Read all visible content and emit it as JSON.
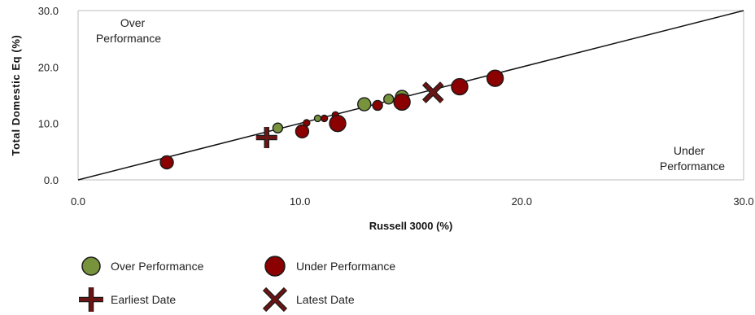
{
  "chart_data": {
    "type": "scatter",
    "xlabel": "Russell 3000  (%)",
    "ylabel": "Total Domestic Eq  (%)",
    "xlim": [
      0,
      30
    ],
    "ylim": [
      0,
      30
    ],
    "x_ticks": [
      "0.0",
      "10.0",
      "20.0",
      "30.0"
    ],
    "y_ticks": [
      "0.0",
      "10.0",
      "20.0",
      "30.0"
    ],
    "x_tick_values": [
      0,
      10,
      20,
      30
    ],
    "y_tick_values": [
      0,
      10,
      20,
      30
    ],
    "grid": false,
    "reference_line": {
      "x": [
        0,
        30
      ],
      "y": [
        0,
        30
      ]
    },
    "region_labels": {
      "over": [
        "Over",
        "Performance"
      ],
      "under": [
        "Under",
        "Performance"
      ]
    },
    "colors": {
      "over": "#77933c",
      "under": "#8b0000",
      "marker": "#6b1414",
      "outline": "#1a1a1a"
    },
    "series": [
      {
        "name": "Over Performance",
        "points": [
          {
            "x": 9.0,
            "y": 9.2,
            "r": 6
          },
          {
            "x": 10.8,
            "y": 10.9,
            "r": 4
          },
          {
            "x": 12.9,
            "y": 13.4,
            "r": 8
          },
          {
            "x": 14.0,
            "y": 14.3,
            "r": 6
          },
          {
            "x": 14.6,
            "y": 14.7,
            "r": 8
          }
        ]
      },
      {
        "name": "Under Performance",
        "points": [
          {
            "x": 4.0,
            "y": 3.1,
            "r": 8
          },
          {
            "x": 10.1,
            "y": 8.6,
            "r": 8
          },
          {
            "x": 10.3,
            "y": 10.1,
            "r": 4
          },
          {
            "x": 11.1,
            "y": 10.9,
            "r": 4
          },
          {
            "x": 11.6,
            "y": 11.5,
            "r": 4
          },
          {
            "x": 11.7,
            "y": 10.0,
            "r": 10
          },
          {
            "x": 13.5,
            "y": 13.2,
            "r": 6
          },
          {
            "x": 14.6,
            "y": 13.8,
            "r": 10
          },
          {
            "x": 17.2,
            "y": 16.5,
            "r": 10
          },
          {
            "x": 18.8,
            "y": 18.0,
            "r": 10
          }
        ]
      }
    ],
    "markers": [
      {
        "name": "Earliest Date",
        "shape": "plus",
        "x": 8.5,
        "y": 7.5
      },
      {
        "name": "Latest Date",
        "shape": "x",
        "x": 16.0,
        "y": 15.5
      }
    ],
    "legend": {
      "placement": "bottom-left",
      "items": [
        "Over Performance",
        "Under Performance",
        "Earliest Date",
        "Latest Date"
      ]
    }
  }
}
